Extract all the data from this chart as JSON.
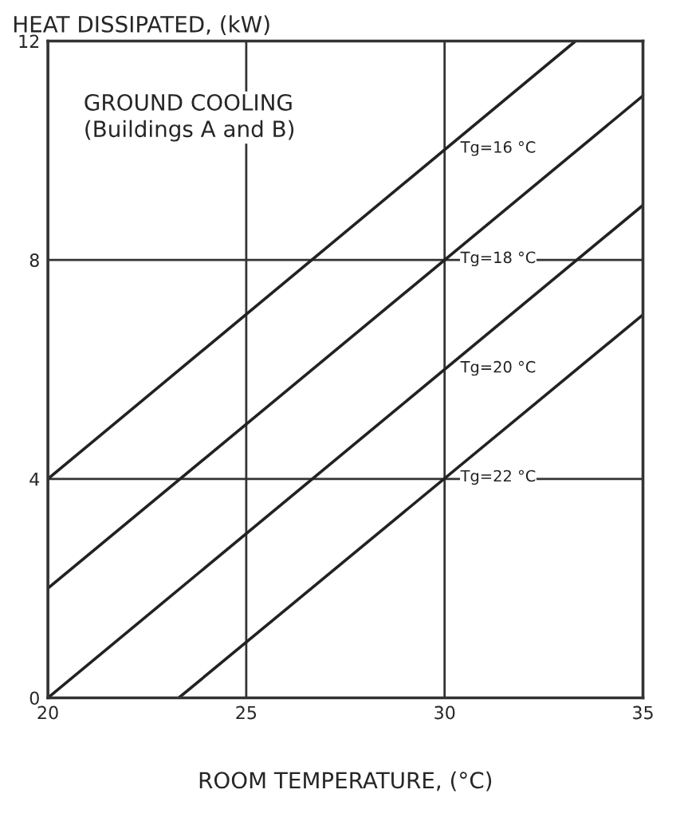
{
  "chart_data": {
    "type": "line",
    "ylabel": "HEAT DISSIPATED, (kW)",
    "xlabel": "ROOM TEMPERATURE, (°C)",
    "annotations": [
      "GROUND COOLING\n(Buildings A and B)"
    ],
    "series": [
      {
        "name": "Tg=16 °C",
        "color": "#222222",
        "x": [
          20,
          33.3
        ],
        "values": [
          4,
          12
        ]
      },
      {
        "name": "Tg=18 °C",
        "color": "#222222",
        "x": [
          20,
          35
        ],
        "values": [
          2,
          11
        ]
      },
      {
        "name": "Tg=20 °C",
        "color": "#222222",
        "x": [
          20,
          35
        ],
        "values": [
          0,
          9
        ]
      },
      {
        "name": "Tg=22 °C",
        "color": "#222222",
        "x": [
          23.3,
          35
        ],
        "values": [
          0,
          7
        ]
      }
    ],
    "xlim": [
      20,
      35
    ],
    "xticks": [
      20,
      25,
      30,
      35
    ],
    "ylim": [
      0,
      12
    ],
    "yticks": [
      0,
      4,
      8,
      12
    ],
    "grid": true,
    "legend": false,
    "marker": "none",
    "line_style": "solid"
  }
}
